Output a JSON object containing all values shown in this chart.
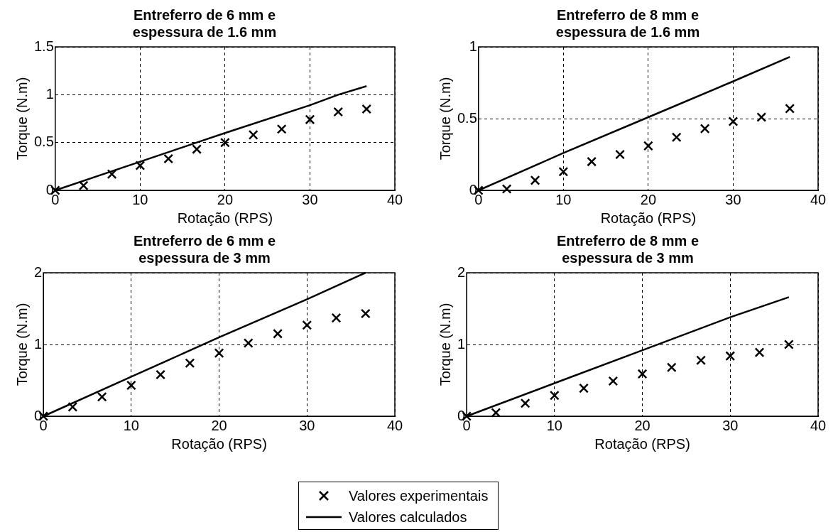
{
  "chart_data": [
    {
      "type": "scatter",
      "title": "Entreferro de 6 mm e\nespessura de 1.6 mm",
      "xlabel": "Rotação (RPS)",
      "ylabel": "Torque (N.m)",
      "xlim": [
        0,
        40
      ],
      "xticks": [
        0,
        10,
        20,
        30,
        40
      ],
      "ylim": [
        0,
        1.5
      ],
      "yticks": [
        0,
        0.5,
        1,
        1.5
      ],
      "grid": true,
      "legend": false,
      "series": [
        {
          "marker": "cross",
          "color": "#000000",
          "x": [
            0,
            3.33,
            6.67,
            10,
            13.33,
            16.67,
            20,
            23.33,
            26.67,
            30,
            33.33,
            36.67
          ],
          "values": [
            0,
            0.05,
            0.17,
            0.26,
            0.33,
            0.43,
            0.5,
            0.58,
            0.64,
            0.74,
            0.82,
            0.85
          ]
        },
        {
          "type": "line",
          "color": "#000000",
          "line_style": "solid",
          "x": [
            0,
            10,
            16.67,
            20,
            30,
            33.33,
            36.67
          ],
          "values": [
            0,
            0.3,
            0.5,
            0.6,
            0.89,
            1.0,
            1.09
          ]
        }
      ]
    },
    {
      "type": "scatter",
      "title": "Entreferro de 8 mm e\nespessura de 1.6 mm",
      "xlabel": "Rotação (RPS)",
      "ylabel": "Torque (N.m)",
      "xlim": [
        0,
        40
      ],
      "xticks": [
        0,
        10,
        20,
        30,
        40
      ],
      "ylim": [
        0,
        1
      ],
      "yticks": [
        0,
        0.5,
        1
      ],
      "grid": true,
      "legend": false,
      "series": [
        {
          "marker": "cross",
          "color": "#000000",
          "x": [
            0,
            3.33,
            6.67,
            10,
            13.33,
            16.67,
            20,
            23.33,
            26.67,
            30,
            33.33,
            36.67
          ],
          "values": [
            0,
            0.01,
            0.07,
            0.13,
            0.2,
            0.25,
            0.31,
            0.37,
            0.43,
            0.48,
            0.51,
            0.57
          ]
        },
        {
          "type": "line",
          "color": "#000000",
          "line_style": "solid",
          "x": [
            0,
            10,
            20,
            30,
            36.67
          ],
          "values": [
            0,
            0.26,
            0.51,
            0.76,
            0.93
          ]
        }
      ]
    },
    {
      "type": "scatter",
      "title": "Entreferro de 6 mm e\nespessura de 3 mm",
      "xlabel": "Rotação (RPS)",
      "ylabel": "Torque (N.m)",
      "xlim": [
        0,
        40
      ],
      "xticks": [
        0,
        10,
        20,
        30,
        40
      ],
      "ylim": [
        0,
        2
      ],
      "yticks": [
        0,
        1,
        2
      ],
      "grid": true,
      "legend": false,
      "series": [
        {
          "marker": "cross",
          "color": "#000000",
          "x": [
            0,
            3.33,
            6.67,
            10,
            13.33,
            16.67,
            20,
            23.33,
            26.67,
            30,
            33.33,
            36.67
          ],
          "values": [
            0,
            0.13,
            0.27,
            0.43,
            0.58,
            0.74,
            0.88,
            1.02,
            1.15,
            1.27,
            1.37,
            1.43
          ]
        },
        {
          "type": "line",
          "color": "#000000",
          "line_style": "solid",
          "x": [
            0,
            10,
            20,
            30,
            36.67
          ],
          "values": [
            0,
            0.55,
            1.1,
            1.63,
            2.0
          ]
        }
      ]
    },
    {
      "type": "scatter",
      "title": "Entreferro de 8 mm e\nespessura de 3 mm",
      "xlabel": "Rotação (RPS)",
      "ylabel": "Torque (N.m)",
      "xlim": [
        0,
        40
      ],
      "xticks": [
        0,
        10,
        20,
        30,
        40
      ],
      "ylim": [
        0,
        2
      ],
      "yticks": [
        0,
        1,
        2
      ],
      "grid": true,
      "legend": "bottom",
      "series": [
        {
          "name": "Valores experimentais",
          "marker": "cross",
          "color": "#000000",
          "x": [
            0,
            3.33,
            6.67,
            10,
            13.33,
            16.67,
            20,
            23.33,
            26.67,
            30,
            33.33,
            36.67
          ],
          "values": [
            0,
            0.05,
            0.18,
            0.29,
            0.39,
            0.49,
            0.59,
            0.68,
            0.78,
            0.84,
            0.89,
            1.0
          ]
        },
        {
          "type": "line",
          "name": "Valores calculados",
          "color": "#000000",
          "line_style": "solid",
          "x": [
            0,
            10,
            20,
            30,
            36.67
          ],
          "values": [
            0,
            0.46,
            0.92,
            1.38,
            1.66
          ]
        }
      ]
    }
  ]
}
